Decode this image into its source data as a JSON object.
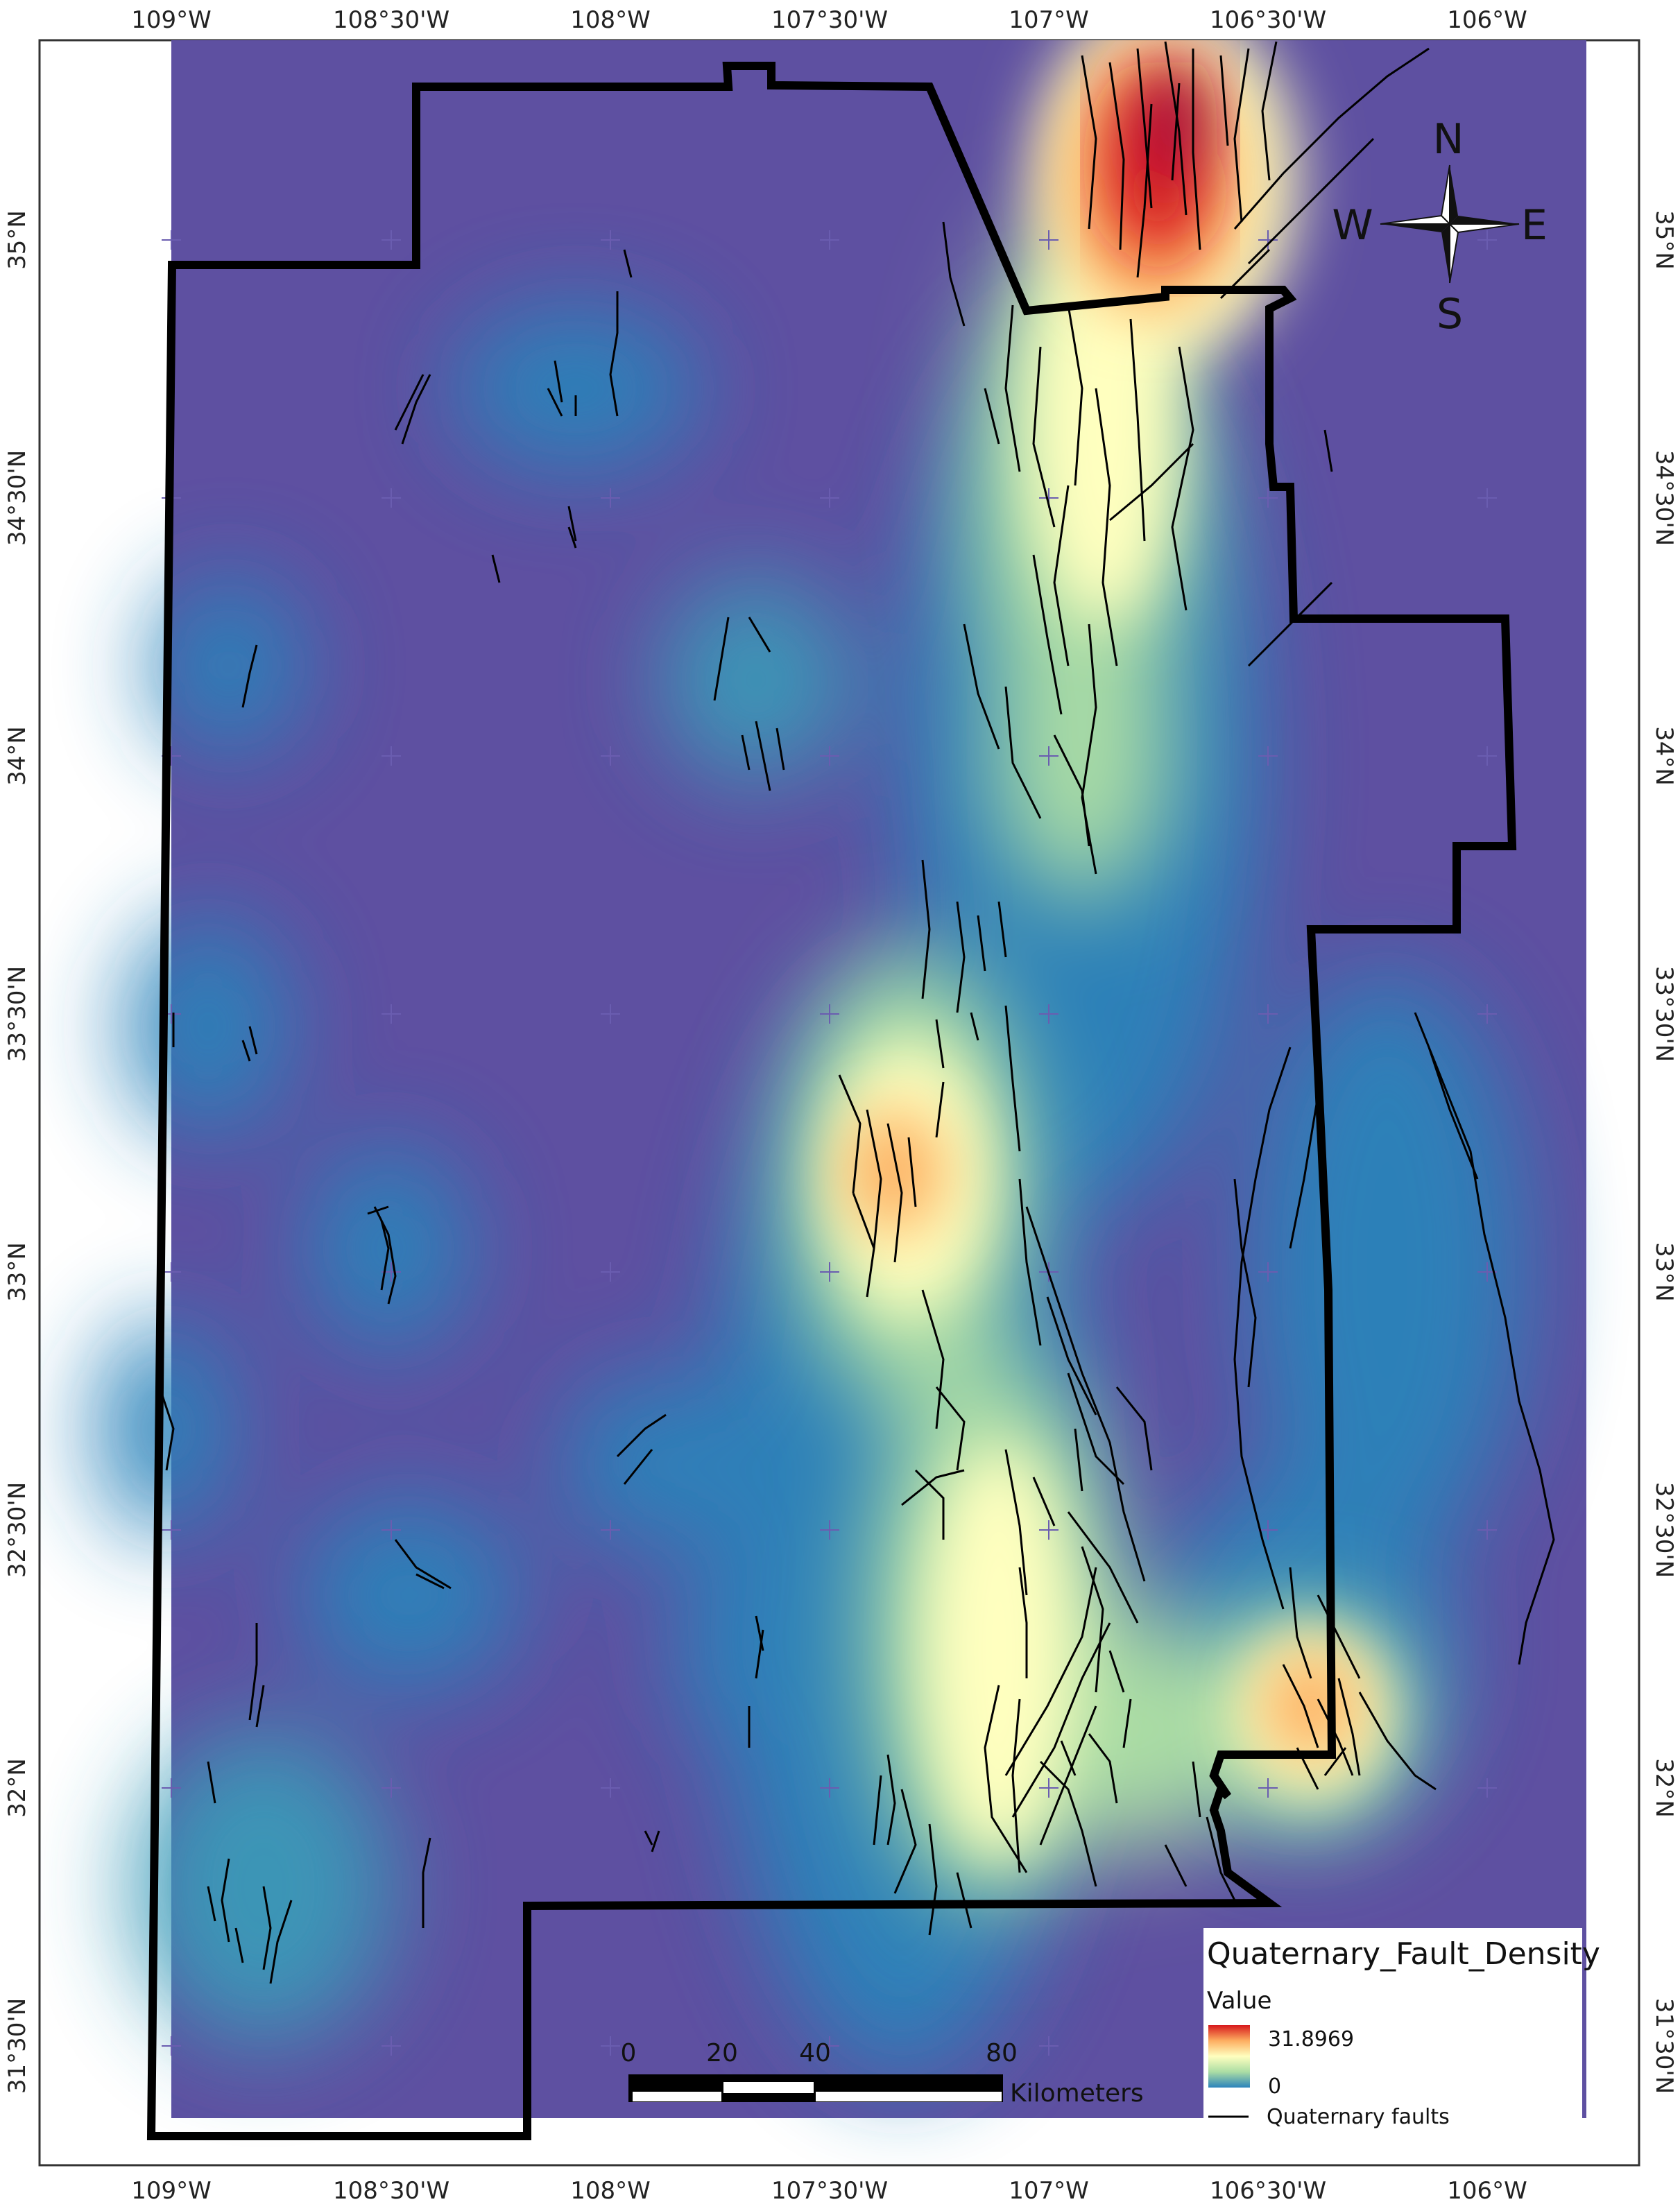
{
  "colors": {
    "background": "#5e50a1",
    "boundary": "#000000",
    "fault": "#000000",
    "ramp": [
      "#2b83ba",
      "#abdda4",
      "#ffffbf",
      "#fdae61",
      "#d7191c"
    ]
  },
  "axes": {
    "top_labels": [
      "109°W",
      "108°30'W",
      "108°W",
      "107°30'W",
      "107°W",
      "106°30'W",
      "106°W"
    ],
    "bottom_labels": [
      "109°W",
      "108°30'W",
      "108°W",
      "107°30'W",
      "107°W",
      "106°30'W",
      "106°W"
    ],
    "left_labels": [
      "35°N",
      "34°30'N",
      "34°N",
      "33°30'N",
      "33°N",
      "32°30'N",
      "32°N",
      "31°30'N"
    ],
    "right_labels": [
      "35°N",
      "34°30'N",
      "34°N",
      "33°30'N",
      "33°N",
      "32°30'N",
      "32°N",
      "31°30'N"
    ]
  },
  "compass": {
    "n": "N",
    "s": "S",
    "e": "E",
    "w": "W",
    "icon": "north-arrow-icon"
  },
  "legend": {
    "title": "Quaternary_Fault_Density",
    "value_label": "Value",
    "max_value": "31.8969",
    "min_value": "0",
    "faults_label": "Quaternary faults"
  },
  "scale_bar": {
    "ticks": [
      "0",
      "20",
      "40",
      "80"
    ],
    "unit": "Kilometers"
  }
}
